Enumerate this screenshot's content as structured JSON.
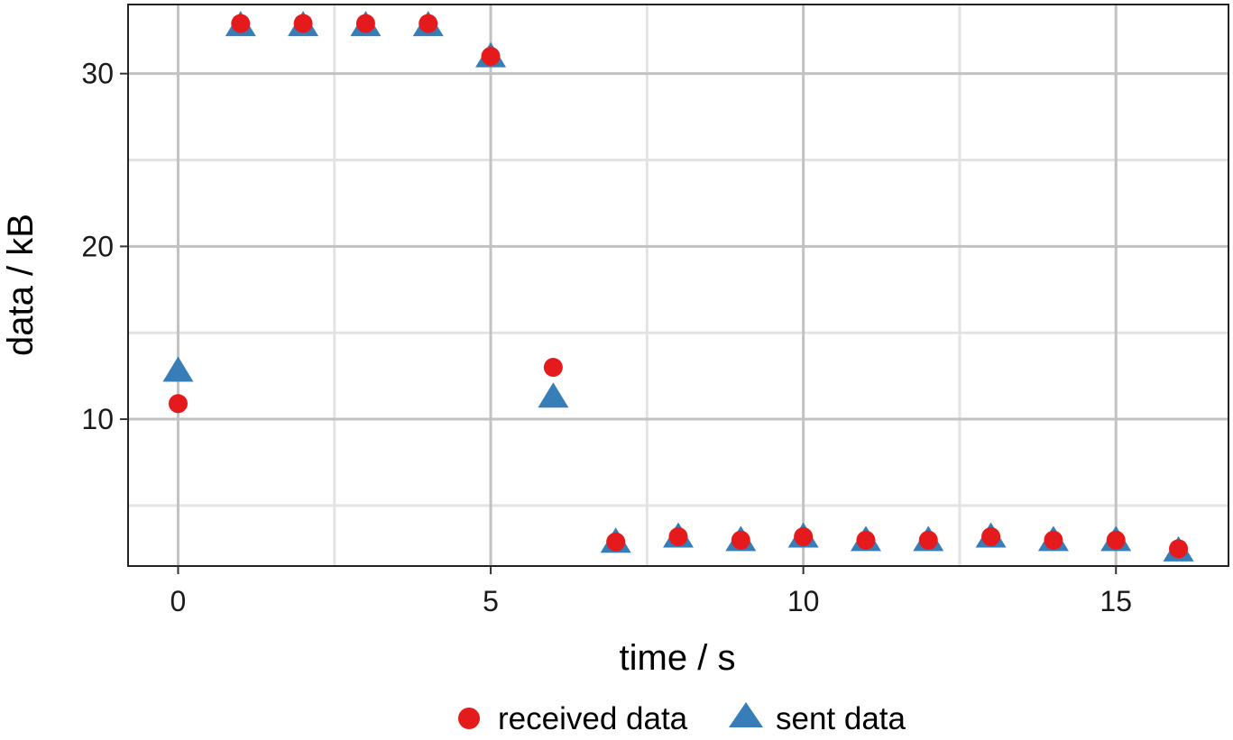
{
  "chart_data": {
    "type": "scatter",
    "title": "",
    "xlabel": "time / s",
    "ylabel": "data / kB",
    "xlim": [
      -0.8,
      16.8
    ],
    "ylim": [
      1.5,
      34
    ],
    "x_ticks": [
      "0",
      "5",
      "10",
      "15"
    ],
    "y_ticks": [
      "10",
      "20",
      "30"
    ],
    "grid": true,
    "legend_position": "bottom",
    "x": [
      0,
      1,
      2,
      3,
      4,
      5,
      6,
      7,
      8,
      9,
      10,
      11,
      12,
      13,
      14,
      15,
      16
    ],
    "series": [
      {
        "name": "received data",
        "marker": "circle",
        "color": "#e41a1c",
        "values": [
          10.9,
          32.9,
          32.9,
          32.9,
          32.9,
          31.0,
          13.0,
          2.9,
          3.2,
          3.0,
          3.2,
          3.0,
          3.0,
          3.2,
          3.0,
          3.0,
          2.5
        ]
      },
      {
        "name": "sent data",
        "marker": "triangle",
        "color": "#377eb8",
        "values": [
          12.9,
          32.9,
          32.9,
          32.9,
          32.9,
          31.1,
          11.4,
          3.0,
          3.3,
          3.1,
          3.3,
          3.1,
          3.1,
          3.3,
          3.1,
          3.1,
          2.5
        ]
      }
    ]
  }
}
